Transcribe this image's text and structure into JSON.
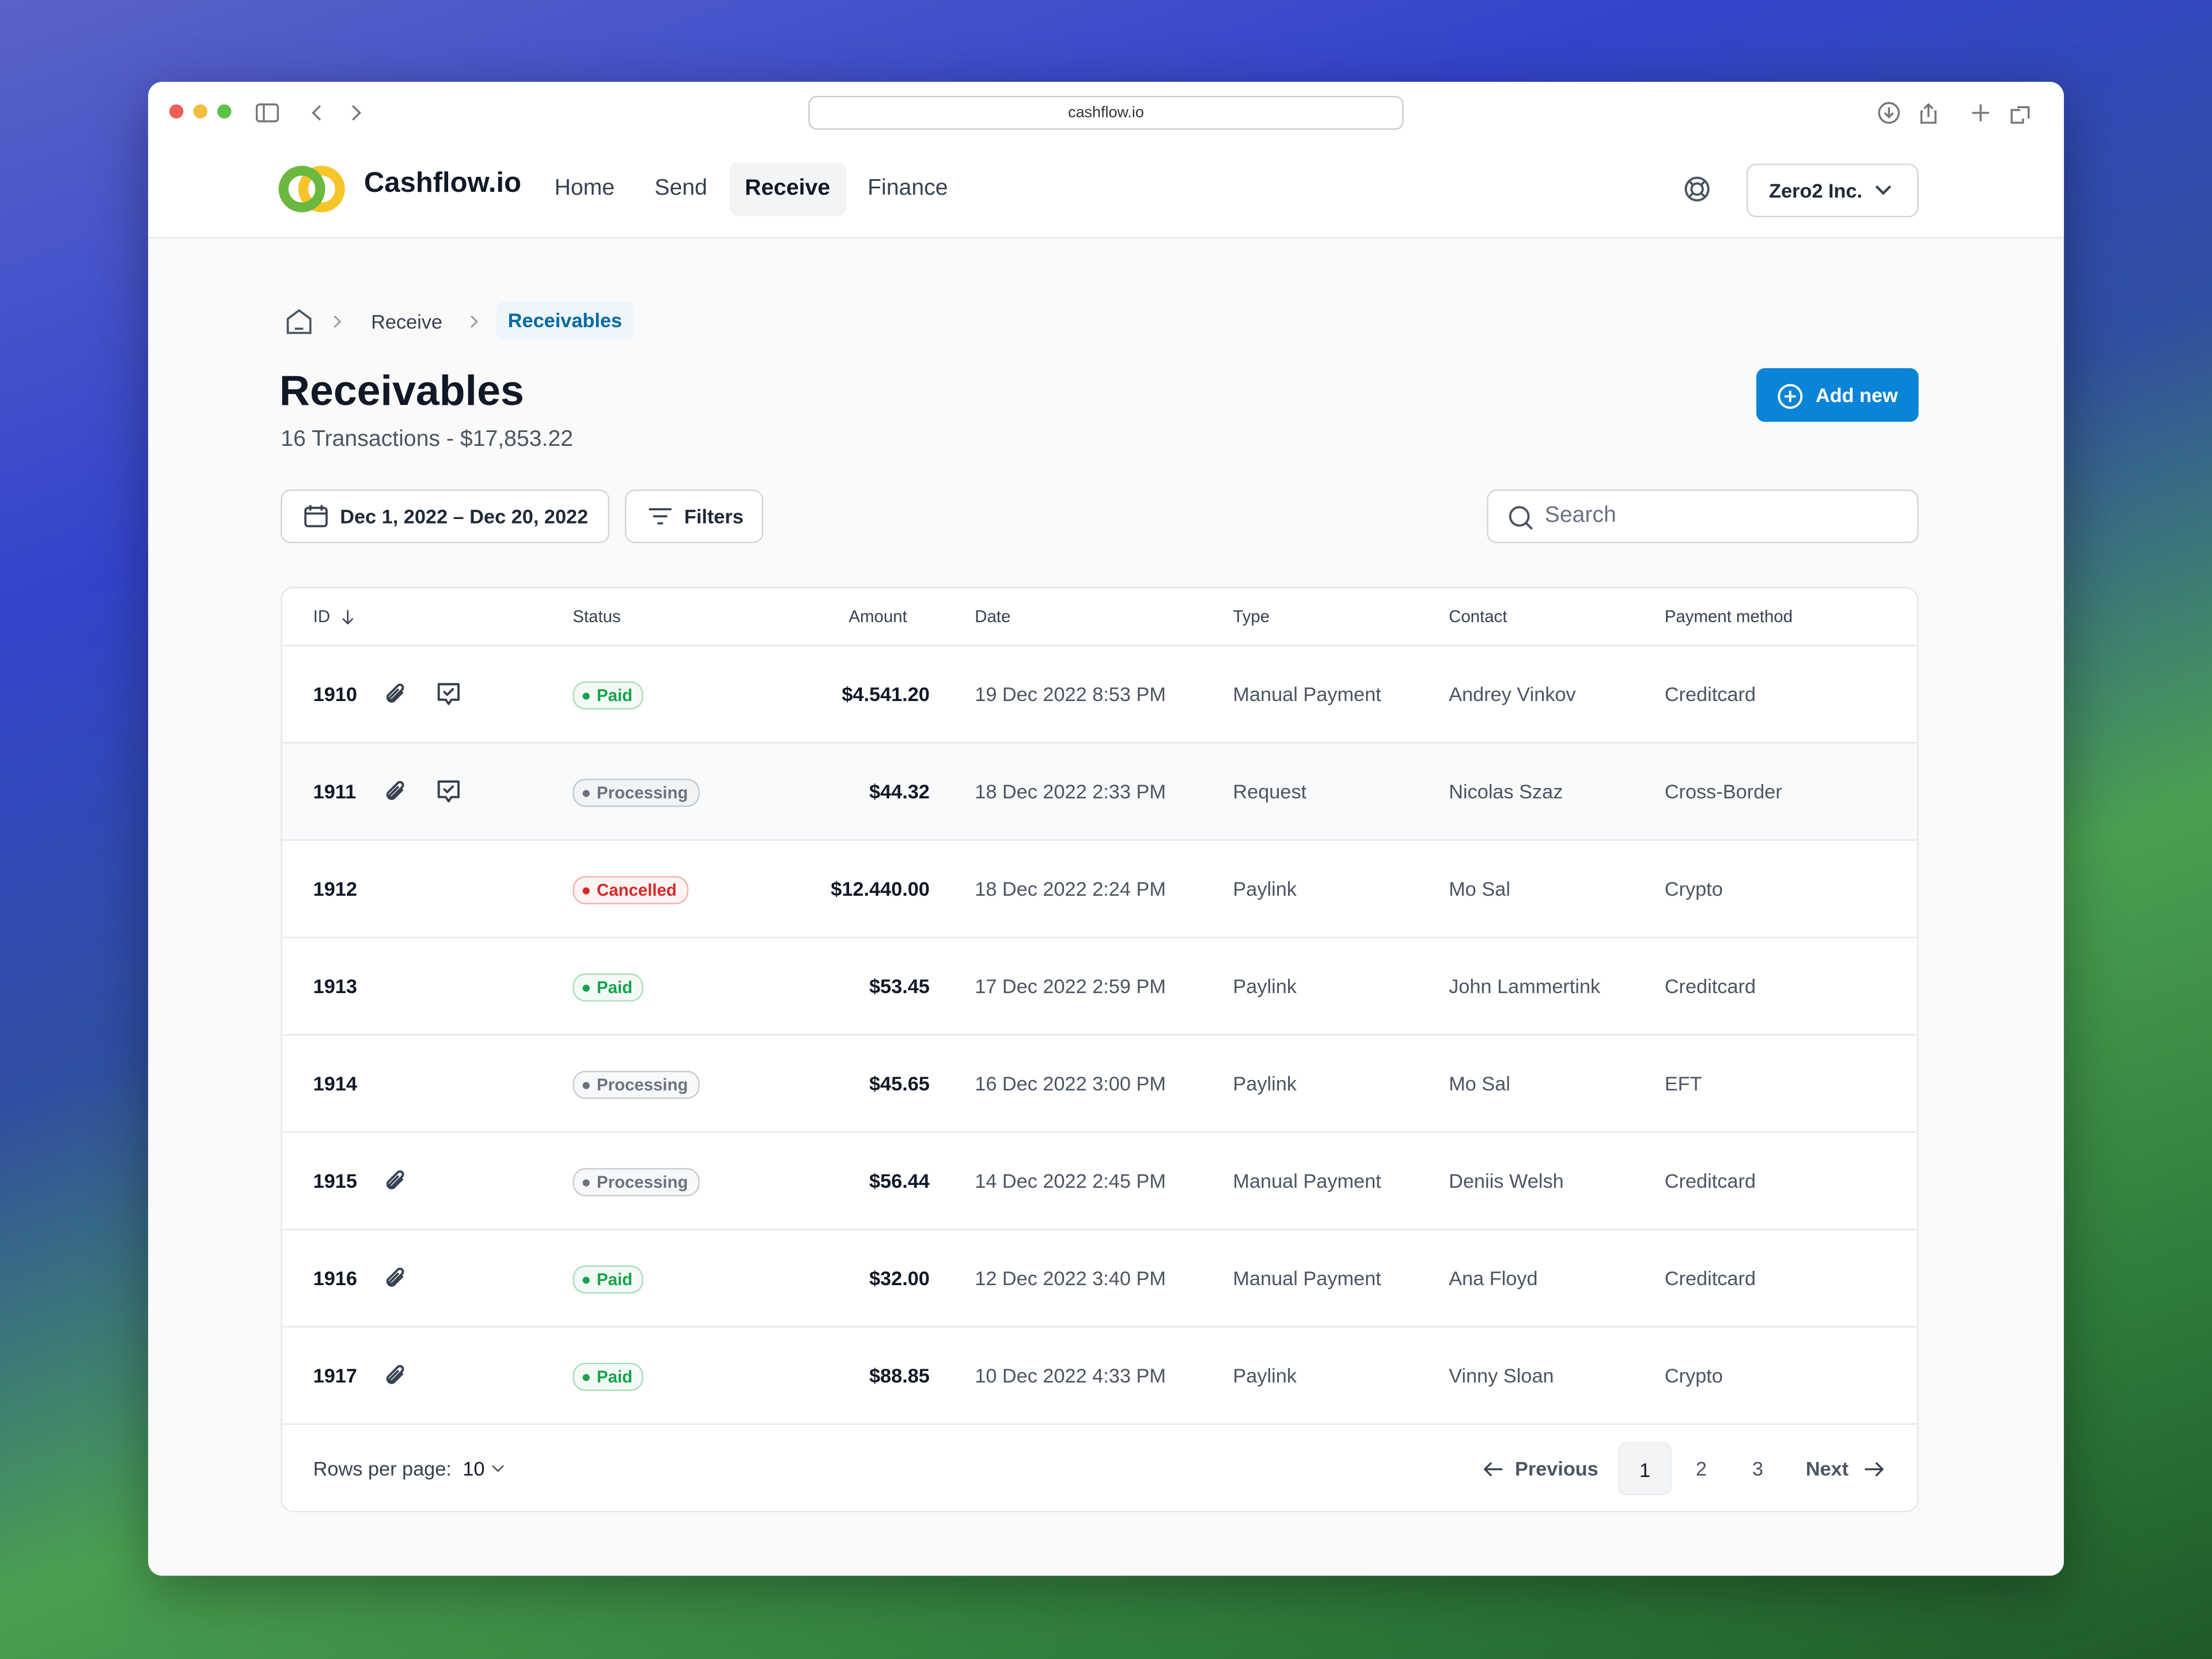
{
  "browser": {
    "url": "cashflow.io"
  },
  "nav": {
    "brand": "Cashflow.io",
    "links": [
      "Home",
      "Send",
      "Receive",
      "Finance"
    ],
    "active": 2,
    "org": "Zero2 Inc."
  },
  "breadcrumb": [
    "Receive",
    "Receivables"
  ],
  "page": {
    "title": "Receivables",
    "subtitle": "16 Transactions - $17,853.22",
    "add_button": "Add new",
    "date_range": "Dec 1, 2022 – Dec 20, 2022",
    "filters": "Filters",
    "search_placeholder": "Search"
  },
  "table": {
    "columns": [
      "ID",
      "Status",
      "Amount",
      "Date",
      "Type",
      "Contact",
      "Payment method"
    ],
    "rows": [
      {
        "id": "1910",
        "attachment": true,
        "comment": true,
        "status": "Paid",
        "status_color": "#16a34a",
        "amount": "$4.541.20",
        "date": "19 Dec 2022 8:53 PM",
        "type": "Manual Payment",
        "contact": "Andrey Vinkov",
        "method": "Creditcard"
      },
      {
        "id": "1911",
        "attachment": true,
        "comment": true,
        "status": "Processing",
        "status_color": "#6b7280",
        "amount": "$44.32",
        "date": "18 Dec 2022 2:33 PM",
        "type": "Request",
        "contact": "Nicolas Szaz",
        "method": "Cross-Border"
      },
      {
        "id": "1912",
        "attachment": false,
        "comment": false,
        "status": "Cancelled",
        "status_color": "#dc2626",
        "amount": "$12.440.00",
        "date": "18 Dec 2022 2:24 PM",
        "type": "Paylink",
        "contact": "Mo Sal",
        "method": "Crypto"
      },
      {
        "id": "1913",
        "attachment": false,
        "comment": false,
        "status": "Paid",
        "status_color": "#16a34a",
        "amount": "$53.45",
        "date": "17 Dec 2022 2:59 PM",
        "type": "Paylink",
        "contact": "John Lammertink",
        "method": "Creditcard"
      },
      {
        "id": "1914",
        "attachment": false,
        "comment": false,
        "status": "Processing",
        "status_color": "#6b7280",
        "amount": "$45.65",
        "date": "16 Dec 2022 3:00 PM",
        "type": "Paylink",
        "contact": "Mo Sal",
        "method": "EFT"
      },
      {
        "id": "1915",
        "attachment": true,
        "comment": false,
        "status": "Processing",
        "status_color": "#6b7280",
        "amount": "$56.44",
        "date": "14 Dec 2022 2:45 PM",
        "type": "Manual Payment",
        "contact": "Deniis Welsh",
        "method": "Creditcard"
      },
      {
        "id": "1916",
        "attachment": true,
        "comment": false,
        "status": "Paid",
        "status_color": "#16a34a",
        "amount": "$32.00",
        "date": "12 Dec 2022 3:40 PM",
        "type": "Manual Payment",
        "contact": "Ana Floyd",
        "method": "Creditcard"
      },
      {
        "id": "1917",
        "attachment": true,
        "comment": false,
        "status": "Paid",
        "status_color": "#16a34a",
        "amount": "$88.85",
        "date": "10 Dec 2022 4:33 PM",
        "type": "Paylink",
        "contact": "Vinny Sloan",
        "method": "Crypto"
      }
    ]
  },
  "pagination": {
    "rows_label": "Rows per page:",
    "rows_value": "10",
    "previous": "Previous",
    "pages": [
      "1",
      "2",
      "3"
    ],
    "current": 0,
    "next": "Next"
  }
}
